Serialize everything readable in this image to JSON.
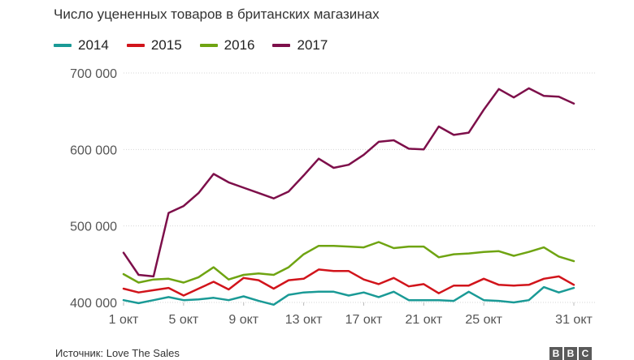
{
  "title": "Число уцененных товаров в британских магазинах",
  "source": "Источник: Love The Sales",
  "logo_text": "BBC",
  "chart_data": {
    "type": "line",
    "title": "Число уцененных товаров в британских магазинах",
    "xlabel": "",
    "ylabel": "",
    "ylim": [
      400000,
      700000
    ],
    "yticks": [
      400000,
      500000,
      600000,
      700000
    ],
    "ytick_labels": [
      "400 000",
      "500 000",
      "600 000",
      "700 000"
    ],
    "xlim": [
      1,
      31
    ],
    "xticks": [
      1,
      5,
      9,
      13,
      17,
      21,
      25,
      31
    ],
    "xtick_labels": [
      "1 окт",
      "5 окт",
      "9 окт",
      "13 окт",
      "17 окт",
      "21 окт",
      "25 окт",
      "31 окт"
    ],
    "grid": "horizontal",
    "legend": "top-left",
    "series": [
      {
        "name": "2014",
        "color": "#1a9a96",
        "x": [
          1,
          2,
          3,
          4,
          5,
          6,
          7,
          8,
          9,
          10,
          11,
          12,
          13,
          14,
          15,
          16,
          17,
          18,
          19,
          20,
          21,
          22,
          23,
          24,
          25,
          26,
          27,
          28,
          29,
          30,
          31
        ],
        "values": [
          403000,
          399000,
          403000,
          407000,
          403000,
          404000,
          406000,
          403000,
          408000,
          402000,
          397000,
          410000,
          413000,
          414000,
          414000,
          409000,
          413000,
          407000,
          414000,
          403000,
          403000,
          403000,
          402000,
          414000,
          403000,
          402000,
          400000,
          403000,
          420000,
          413000,
          419000
        ]
      },
      {
        "name": "2015",
        "color": "#d1141b",
        "x": [
          1,
          2,
          3,
          4,
          5,
          6,
          7,
          8,
          9,
          10,
          11,
          12,
          13,
          14,
          15,
          16,
          17,
          18,
          19,
          20,
          21,
          22,
          23,
          24,
          25,
          26,
          27,
          28,
          29,
          30,
          31
        ],
        "values": [
          418000,
          413000,
          416000,
          419000,
          409000,
          418000,
          427000,
          417000,
          432000,
          429000,
          418000,
          429000,
          431000,
          443000,
          441000,
          441000,
          430000,
          424000,
          432000,
          421000,
          424000,
          412000,
          422000,
          422000,
          431000,
          423000,
          422000,
          423000,
          431000,
          434000,
          423000
        ]
      },
      {
        "name": "2016",
        "color": "#6fa412",
        "x": [
          1,
          2,
          3,
          4,
          5,
          6,
          7,
          8,
          9,
          10,
          11,
          12,
          13,
          14,
          15,
          16,
          17,
          18,
          19,
          20,
          21,
          22,
          23,
          24,
          25,
          26,
          27,
          28,
          29,
          30,
          31
        ],
        "values": [
          437000,
          426000,
          430000,
          431000,
          426000,
          433000,
          446000,
          430000,
          436000,
          438000,
          436000,
          446000,
          463000,
          474000,
          474000,
          473000,
          472000,
          479000,
          471000,
          473000,
          473000,
          459000,
          463000,
          464000,
          466000,
          467000,
          461000,
          466000,
          472000,
          460000,
          454000
        ]
      },
      {
        "name": "2017",
        "color": "#7d0f4a",
        "x": [
          1,
          2,
          3,
          4,
          5,
          6,
          7,
          8,
          9,
          10,
          11,
          12,
          13,
          14,
          15,
          16,
          17,
          18,
          19,
          20,
          21,
          22,
          23,
          24,
          25,
          26,
          27,
          28,
          29,
          30,
          31
        ],
        "values": [
          465000,
          436000,
          434000,
          517000,
          526000,
          543000,
          568000,
          557000,
          550000,
          543000,
          536000,
          545000,
          566000,
          588000,
          576000,
          580000,
          593000,
          610000,
          612000,
          601000,
          600000,
          630000,
          619000,
          622000,
          652000,
          679000,
          668000,
          680000,
          670000,
          669000,
          660000
        ]
      }
    ]
  }
}
